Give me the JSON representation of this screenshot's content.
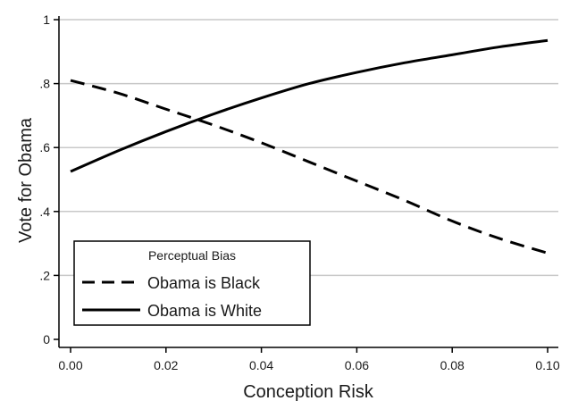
{
  "chart_data": {
    "type": "line",
    "xlabel": "Conception Risk",
    "ylabel": "Vote for Obama",
    "xlim": [
      0,
      0.1
    ],
    "ylim": [
      0,
      1
    ],
    "x_ticks": [
      0,
      0.02,
      0.04,
      0.06,
      0.08,
      0.1
    ],
    "x_tick_labels": [
      "0.00",
      "0.02",
      "0.04",
      "0.06",
      "0.08",
      "0.10"
    ],
    "y_ticks": [
      0,
      0.2,
      0.4,
      0.6,
      0.8,
      1
    ],
    "y_tick_labels": [
      "0",
      ".2",
      ".4",
      ".6",
      ".8",
      "1"
    ],
    "grid": "horizontal",
    "legend": {
      "title": "Perceptual Bias",
      "position": "bottom-left"
    },
    "series": [
      {
        "name": "Obama is Black",
        "style": "dashed",
        "color": "#000000",
        "x": [
          0,
          0.01,
          0.02,
          0.03,
          0.04,
          0.05,
          0.06,
          0.07,
          0.08,
          0.09,
          0.1
        ],
        "y": [
          0.81,
          0.77,
          0.72,
          0.67,
          0.615,
          0.555,
          0.495,
          0.435,
          0.37,
          0.315,
          0.27
        ]
      },
      {
        "name": "Obama is White",
        "style": "solid",
        "color": "#000000",
        "x": [
          0,
          0.01,
          0.02,
          0.03,
          0.04,
          0.05,
          0.06,
          0.07,
          0.08,
          0.09,
          0.1
        ],
        "y": [
          0.525,
          0.59,
          0.65,
          0.705,
          0.755,
          0.8,
          0.835,
          0.865,
          0.89,
          0.915,
          0.935
        ]
      }
    ]
  }
}
